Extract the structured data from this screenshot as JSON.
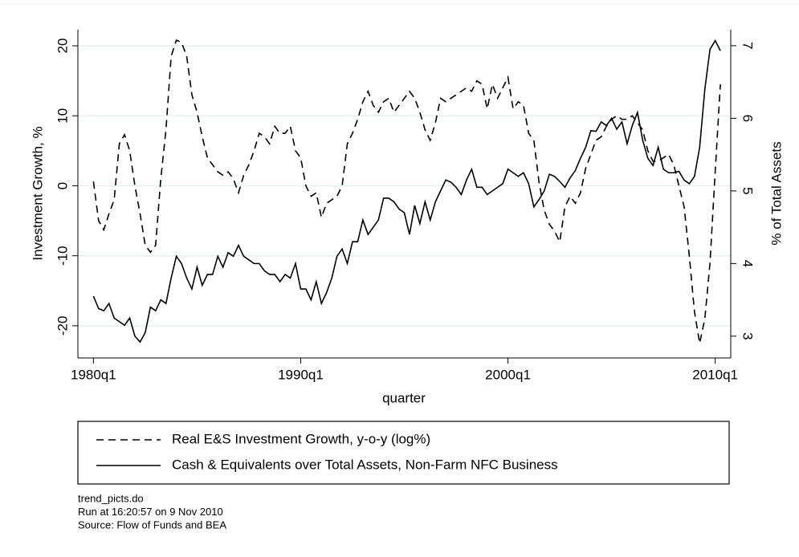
{
  "chart_data": {
    "type": "line",
    "x_label": "quarter",
    "y_label": "Investment Growth, %",
    "y2_label": "% of Total Assets",
    "x": [
      "1980q1",
      "1980q2",
      "1980q3",
      "1980q4",
      "1981q1",
      "1981q2",
      "1981q3",
      "1981q4",
      "1982q1",
      "1982q2",
      "1982q3",
      "1982q4",
      "1983q1",
      "1983q2",
      "1983q3",
      "1983q4",
      "1984q1",
      "1984q2",
      "1984q3",
      "1984q4",
      "1985q1",
      "1985q2",
      "1985q3",
      "1985q4",
      "1986q1",
      "1986q2",
      "1986q3",
      "1986q4",
      "1987q1",
      "1987q2",
      "1987q3",
      "1987q4",
      "1988q1",
      "1988q2",
      "1988q3",
      "1988q4",
      "1989q1",
      "1989q2",
      "1989q3",
      "1989q4",
      "1990q1",
      "1990q2",
      "1990q3",
      "1990q4",
      "1991q1",
      "1991q2",
      "1991q3",
      "1991q4",
      "1992q1",
      "1992q2",
      "1992q3",
      "1992q4",
      "1993q1",
      "1993q2",
      "1993q3",
      "1993q4",
      "1994q1",
      "1994q2",
      "1994q3",
      "1994q4",
      "1995q1",
      "1995q2",
      "1995q3",
      "1995q4",
      "1996q1",
      "1996q2",
      "1996q3",
      "1996q4",
      "1997q1",
      "1997q2",
      "1997q3",
      "1997q4",
      "1998q1",
      "1998q2",
      "1998q3",
      "1998q4",
      "1999q1",
      "1999q2",
      "1999q3",
      "1999q4",
      "2000q1",
      "2000q2",
      "2000q3",
      "2000q4",
      "2001q1",
      "2001q2",
      "2001q3",
      "2001q4",
      "2002q1",
      "2002q2",
      "2002q3",
      "2002q4",
      "2003q1",
      "2003q2",
      "2003q3",
      "2003q4",
      "2004q1",
      "2004q2",
      "2004q3",
      "2004q4",
      "2005q1",
      "2005q2",
      "2005q3",
      "2005q4",
      "2006q1",
      "2006q2",
      "2006q3",
      "2006q4",
      "2007q1",
      "2007q2",
      "2007q3",
      "2007q4",
      "2008q1",
      "2008q2",
      "2008q3",
      "2008q4",
      "2009q1",
      "2009q2",
      "2009q3",
      "2009q4",
      "2010q1",
      "2010q2"
    ],
    "xlim": [
      "1979q2",
      "2010q4"
    ],
    "xticks": [
      "1980q1",
      "1990q1",
      "2000q1",
      "2010q1"
    ],
    "ylim": [
      -24.6,
      22.3
    ],
    "yticks": [
      -20,
      -10,
      0,
      10,
      20
    ],
    "y2lim": [
      2.7,
      7.22
    ],
    "y2ticks": [
      3,
      4,
      5,
      6,
      7
    ],
    "grid": true,
    "series": [
      {
        "name": "Real E&S Investment Growth, y-o-y (log%)",
        "color": "#000000",
        "line_style": "dashed",
        "values": [
          0.6,
          -5,
          -6.3,
          -4,
          -2,
          6,
          7.3,
          5,
          0,
          -4,
          -8.5,
          -9.5,
          -8.5,
          1,
          8,
          18.5,
          20.8,
          20.5,
          18.5,
          13,
          10.5,
          7,
          4,
          3,
          2,
          1.5,
          2,
          1,
          -1,
          1.5,
          3,
          5,
          7.5,
          7,
          6,
          8.5,
          7.5,
          7.5,
          8.5,
          5,
          4,
          0,
          -1.5,
          -1,
          -4.5,
          -2.5,
          -2,
          -1.5,
          0,
          6,
          7.5,
          9.5,
          12,
          13.5,
          11.5,
          10.5,
          12,
          12.5,
          10.5,
          11.5,
          12.5,
          13.5,
          12.5,
          10.5,
          8,
          6.5,
          9,
          12.5,
          12,
          12.5,
          13,
          13.5,
          14,
          13.5,
          15,
          14.5,
          11,
          14.5,
          12.5,
          14,
          15.5,
          11,
          12,
          11.5,
          7.5,
          6.5,
          0.5,
          -3.5,
          -5.5,
          -6.5,
          -8,
          -3,
          -1.5,
          -2.5,
          -1,
          2.5,
          4.5,
          6.5,
          7,
          8.5,
          9.5,
          10,
          9.5,
          9.5,
          10,
          9,
          8,
          5,
          3.5,
          3.5,
          4,
          4.5,
          3,
          0,
          -3,
          -10,
          -18,
          -22.5,
          -19,
          -11,
          2,
          14.5
        ]
      },
      {
        "name": "Cash & Equivalents over Total Assets, Non-Farm NFC Business",
        "color": "#000000",
        "line_style": "solid",
        "axis": "y2",
        "values": [
          3.55,
          3.38,
          3.35,
          3.45,
          3.25,
          3.2,
          3.15,
          3.25,
          3.0,
          2.92,
          3.05,
          3.4,
          3.35,
          3.5,
          3.45,
          3.8,
          4.1,
          4.0,
          3.8,
          3.65,
          3.95,
          3.7,
          3.85,
          3.85,
          4.1,
          3.95,
          4.15,
          4.1,
          4.25,
          4.1,
          4.05,
          4.0,
          4.0,
          3.9,
          3.85,
          3.85,
          3.75,
          3.85,
          3.8,
          4.0,
          3.65,
          3.65,
          3.5,
          3.75,
          3.45,
          3.6,
          3.8,
          4.1,
          4.2,
          4.0,
          4.3,
          4.3,
          4.6,
          4.4,
          4.5,
          4.6,
          4.9,
          4.9,
          4.85,
          4.75,
          4.7,
          4.4,
          4.8,
          4.55,
          4.85,
          4.6,
          4.85,
          5.0,
          5.15,
          5.12,
          5.05,
          4.95,
          5.15,
          5.3,
          5.05,
          5.05,
          4.95,
          5.0,
          5.05,
          5.1,
          5.3,
          5.25,
          5.2,
          5.25,
          5.1,
          4.78,
          4.88,
          5.0,
          5.23,
          5.2,
          5.13,
          5.05,
          5.18,
          5.28,
          5.45,
          5.6,
          5.83,
          5.82,
          5.95,
          5.9,
          6.0,
          5.85,
          5.95,
          5.65,
          5.9,
          6.08,
          5.7,
          5.45,
          5.35,
          5.6,
          5.3,
          5.25,
          5.25,
          5.27,
          5.15,
          5.1,
          5.2,
          5.6,
          6.4,
          6.95,
          7.07,
          6.93
        ]
      }
    ],
    "notes": [
      "trend_picts.do",
      "Run at 16:20:57 on  9 Nov 2010",
      "Source: Flow of Funds and BEA"
    ]
  }
}
